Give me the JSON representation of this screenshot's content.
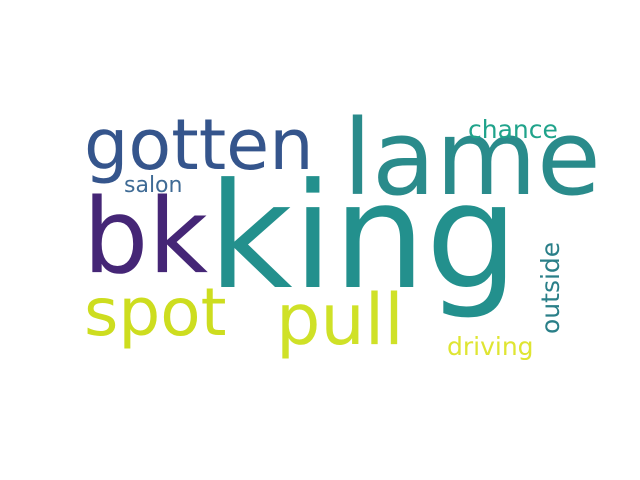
{
  "words": [
    {
      "key": "king",
      "text": "king",
      "color": "#23908d"
    },
    {
      "key": "lame",
      "text": "lame",
      "color": "#2a8b8b"
    },
    {
      "key": "gotten",
      "text": "gotten",
      "color": "#35558c"
    },
    {
      "key": "bk",
      "text": "bk",
      "color": "#452676"
    },
    {
      "key": "spot",
      "text": "spot",
      "color": "#cddd1f"
    },
    {
      "key": "pull",
      "text": "pull",
      "color": "#cfe127"
    },
    {
      "key": "chance",
      "text": "chance",
      "color": "#20a38b"
    },
    {
      "key": "salon",
      "text": "salon",
      "color": "#3f6b95"
    },
    {
      "key": "outside",
      "text": "outside",
      "color": "#2a7f88"
    },
    {
      "key": "driving",
      "text": "driving",
      "color": "#dfe532"
    }
  ]
}
